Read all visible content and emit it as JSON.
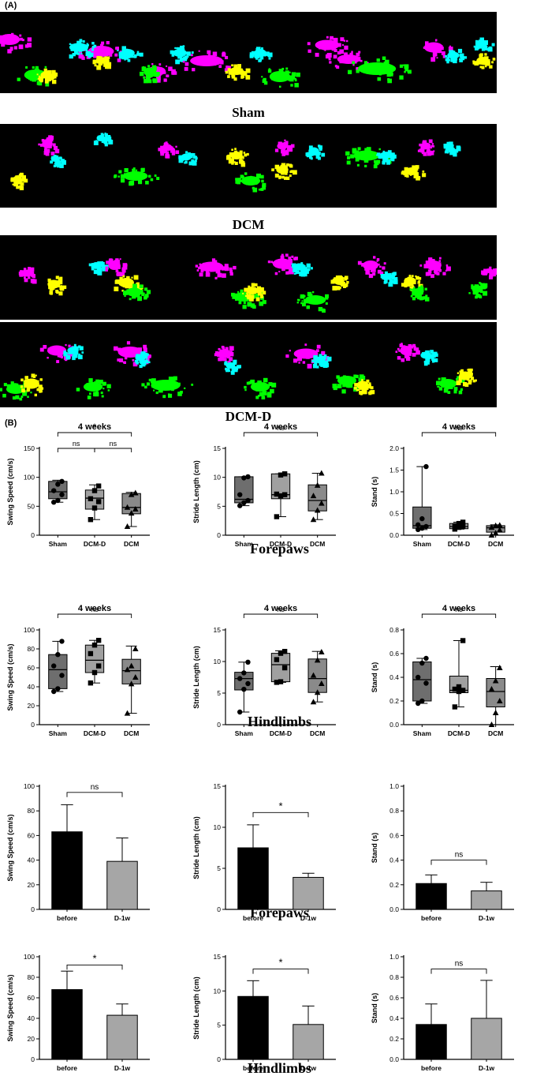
{
  "panel_a_label": "(A)",
  "panel_b_label": "(B)",
  "footprint_captions": [
    "Sham",
    "DCM",
    "DCM-D"
  ],
  "row_captions": [
    "Forepaws",
    "Hindlimbs",
    "Forepaws",
    "Hindlimbs"
  ],
  "colors": {
    "lf": "#ff00ff",
    "rf": "#00ffff",
    "lh": "#ffff00",
    "rh": "#00ff00",
    "box_sham": "#6e6e6e",
    "box_dcmd": "#a0a0a0",
    "box_dcm": "#8a8a8a",
    "bar_before": "#000000",
    "bar_after": "#a6a6a6"
  },
  "chart_data": [
    {
      "type": "box",
      "row": 0,
      "title": "4 weeks",
      "ylabel": "Swing Speed (cm/s)",
      "ylim": [
        0,
        150
      ],
      "yticks": [
        0,
        50,
        100,
        150
      ],
      "categories": [
        "Sham",
        "DCM-D",
        "DCM"
      ],
      "marker": [
        "circle",
        "square",
        "triangle"
      ],
      "boxes": [
        {
          "min": 57,
          "q1": 63,
          "median": 75,
          "q3": 93,
          "max": 95
        },
        {
          "min": 27,
          "q1": 45,
          "median": 64,
          "q3": 78,
          "max": 87
        },
        {
          "min": 15,
          "q1": 37,
          "median": 48,
          "q3": 72,
          "max": 74
        }
      ],
      "points": [
        [
          57,
          60,
          70,
          77,
          88,
          93
        ],
        [
          27,
          47,
          58,
          63,
          77,
          85
        ],
        [
          15,
          38,
          45,
          48,
          70,
          73
        ]
      ],
      "sig": [
        {
          "from": 0,
          "to": 2,
          "label": "*",
          "level": 1
        },
        {
          "from": 0,
          "to": 1,
          "label": "ns",
          "level": 0
        },
        {
          "from": 1,
          "to": 2,
          "label": "ns",
          "level": 0
        }
      ]
    },
    {
      "type": "box",
      "row": 0,
      "title": "4 weeks",
      "ylabel": "Stride Length (cm)",
      "ylim": [
        0,
        15
      ],
      "yticks": [
        0,
        5,
        10,
        15
      ],
      "categories": [
        "Sham",
        "DCM-D",
        "DCM"
      ],
      "marker": [
        "circle",
        "square",
        "triangle"
      ],
      "boxes": [
        {
          "min": 5.1,
          "q1": 5.6,
          "median": 6.2,
          "q3": 10.1,
          "max": 10.1
        },
        {
          "min": 3.2,
          "q1": 6.3,
          "median": 7.0,
          "q3": 10.6,
          "max": 10.6
        },
        {
          "min": 2.7,
          "q1": 4.2,
          "median": 6.0,
          "q3": 8.7,
          "max": 10.7
        }
      ],
      "points": [
        [
          5.1,
          5.6,
          6.0,
          7.0,
          9.9,
          10.1
        ],
        [
          3.2,
          6.8,
          7.0,
          7.1,
          10.4,
          10.6
        ],
        [
          2.7,
          4.3,
          5.5,
          6.8,
          8.6,
          10.7
        ]
      ],
      "sig": [
        {
          "from": 0,
          "to": 2,
          "label": "ns",
          "level": 1
        }
      ]
    },
    {
      "type": "box",
      "row": 0,
      "title": "4 weeks",
      "ylabel": "Stand (s)",
      "ylim": [
        0,
        2.0
      ],
      "yticks": [
        0.0,
        0.5,
        1.0,
        1.5,
        2.0
      ],
      "categories": [
        "Sham",
        "DCM-D",
        "DCM"
      ],
      "marker": [
        "circle",
        "square",
        "triangle"
      ],
      "boxes": [
        {
          "min": 0.13,
          "q1": 0.16,
          "median": 0.22,
          "q3": 0.65,
          "max": 1.58
        },
        {
          "min": 0.14,
          "q1": 0.15,
          "median": 0.2,
          "q3": 0.27,
          "max": 0.3
        },
        {
          "min": 0.0,
          "q1": 0.07,
          "median": 0.17,
          "q3": 0.22,
          "max": 0.24
        }
      ],
      "points": [
        [
          0.13,
          0.16,
          0.2,
          0.24,
          0.38,
          1.58
        ],
        [
          0.14,
          0.18,
          0.2,
          0.22,
          0.27,
          0.3
        ],
        [
          0.0,
          0.05,
          0.12,
          0.18,
          0.22,
          0.23
        ]
      ],
      "sig": [
        {
          "from": 0,
          "to": 2,
          "label": "ns",
          "level": 1
        }
      ]
    },
    {
      "type": "box",
      "row": 1,
      "title": "4 weeks",
      "ylabel": "Swing Speed (cm/s)",
      "ylim": [
        0,
        100
      ],
      "yticks": [
        0,
        20,
        40,
        60,
        80,
        100
      ],
      "categories": [
        "Sham",
        "DCM-D",
        "DCM"
      ],
      "marker": [
        "circle",
        "square",
        "triangle"
      ],
      "boxes": [
        {
          "min": 35,
          "q1": 38,
          "median": 58,
          "q3": 74,
          "max": 88
        },
        {
          "min": 44,
          "q1": 55,
          "median": 68,
          "q3": 84,
          "max": 89
        },
        {
          "min": 12,
          "q1": 43,
          "median": 57,
          "q3": 69,
          "max": 83
        }
      ],
      "points": [
        [
          35,
          38,
          52,
          62,
          74,
          88
        ],
        [
          44,
          55,
          62,
          75,
          84,
          89
        ],
        [
          12,
          43,
          50,
          58,
          62,
          80
        ]
      ],
      "sig": [
        {
          "from": 0,
          "to": 2,
          "label": "ns",
          "level": 1
        }
      ]
    },
    {
      "type": "box",
      "row": 1,
      "title": "4 weeks",
      "ylabel": "Stride Length (cm)",
      "ylim": [
        0,
        15
      ],
      "yticks": [
        0,
        5,
        10,
        15
      ],
      "categories": [
        "Sham",
        "DCM-D",
        "DCM"
      ],
      "marker": [
        "circle",
        "square",
        "triangle"
      ],
      "boxes": [
        {
          "min": 2.0,
          "q1": 5.5,
          "median": 7.3,
          "q3": 8.3,
          "max": 9.9
        },
        {
          "min": 6.7,
          "q1": 6.8,
          "median": 9.5,
          "q3": 11.3,
          "max": 11.7
        },
        {
          "min": 3.6,
          "q1": 5.1,
          "median": 7.3,
          "q3": 10.4,
          "max": 11.6
        }
      ],
      "points": [
        [
          2.0,
          5.6,
          6.5,
          7.3,
          8.2,
          9.9
        ],
        [
          6.7,
          6.8,
          9.0,
          10.3,
          11.3,
          11.6
        ],
        [
          3.6,
          5.1,
          6.5,
          7.8,
          10.2,
          11.5
        ]
      ],
      "sig": [
        {
          "from": 0,
          "to": 2,
          "label": "ns",
          "level": 1
        }
      ]
    },
    {
      "type": "box",
      "row": 1,
      "title": "4 weeks",
      "ylabel": "Stand (s)",
      "ylim": [
        0,
        0.8
      ],
      "yticks": [
        0.0,
        0.2,
        0.4,
        0.6,
        0.8
      ],
      "categories": [
        "Sham",
        "DCM-D",
        "DCM"
      ],
      "marker": [
        "circle",
        "square",
        "triangle"
      ],
      "boxes": [
        {
          "min": 0.18,
          "q1": 0.2,
          "median": 0.38,
          "q3": 0.53,
          "max": 0.56
        },
        {
          "min": 0.15,
          "q1": 0.27,
          "median": 0.29,
          "q3": 0.41,
          "max": 0.71
        },
        {
          "min": 0.0,
          "q1": 0.15,
          "median": 0.28,
          "q3": 0.39,
          "max": 0.49
        }
      ],
      "points": [
        [
          0.18,
          0.2,
          0.35,
          0.4,
          0.52,
          0.56
        ],
        [
          0.15,
          0.28,
          0.29,
          0.3,
          0.32,
          0.71
        ],
        [
          0.0,
          0.1,
          0.2,
          0.3,
          0.37,
          0.48
        ]
      ],
      "sig": [
        {
          "from": 0,
          "to": 2,
          "label": "ns",
          "level": 1
        }
      ]
    },
    {
      "type": "bar",
      "row": 2,
      "ylabel": "Swing Speed (cm/s)",
      "ylim": [
        0,
        100
      ],
      "yticks": [
        0,
        20,
        40,
        60,
        80,
        100
      ],
      "categories": [
        "before",
        "D-1w"
      ],
      "values": [
        63,
        39
      ],
      "errors": [
        22,
        19
      ],
      "sig": {
        "label": "ns",
        "y": 95
      }
    },
    {
      "type": "bar",
      "row": 2,
      "ylabel": "Stride Length (cm)",
      "ylim": [
        0,
        15
      ],
      "yticks": [
        0,
        5,
        10,
        15
      ],
      "categories": [
        "before",
        "D-1w"
      ],
      "values": [
        7.5,
        3.9
      ],
      "errors": [
        2.8,
        0.5
      ],
      "sig": {
        "label": "*",
        "y": 11.8
      }
    },
    {
      "type": "bar",
      "row": 2,
      "ylabel": "Stand (s)",
      "ylim": [
        0,
        1.0
      ],
      "yticks": [
        0.0,
        0.2,
        0.4,
        0.6,
        0.8,
        1.0
      ],
      "categories": [
        "before",
        "D-1w"
      ],
      "values": [
        0.21,
        0.15
      ],
      "errors": [
        0.07,
        0.07
      ],
      "sig": {
        "label": "ns",
        "y": 0.4
      }
    },
    {
      "type": "bar",
      "row": 3,
      "ylabel": "Swing Speed (cm/s)",
      "ylim": [
        0,
        100
      ],
      "yticks": [
        0,
        20,
        40,
        60,
        80,
        100
      ],
      "categories": [
        "before",
        "D-1w"
      ],
      "values": [
        68,
        43
      ],
      "errors": [
        18,
        11
      ],
      "sig": {
        "label": "*",
        "y": 92
      }
    },
    {
      "type": "bar",
      "row": 3,
      "ylabel": "Stride Length (cm)",
      "ylim": [
        0,
        15
      ],
      "yticks": [
        0,
        5,
        10,
        15
      ],
      "categories": [
        "before",
        "D-1w"
      ],
      "values": [
        9.2,
        5.1
      ],
      "errors": [
        2.3,
        2.7
      ],
      "sig": {
        "label": "*",
        "y": 13.2
      }
    },
    {
      "type": "bar",
      "row": 3,
      "ylabel": "Stand (s)",
      "ylim": [
        0,
        1.0
      ],
      "yticks": [
        0.0,
        0.2,
        0.4,
        0.6,
        0.8,
        1.0
      ],
      "categories": [
        "before",
        "D-1w"
      ],
      "values": [
        0.34,
        0.4
      ],
      "errors": [
        0.2,
        0.37
      ],
      "sig": {
        "label": "ns",
        "y": 0.88
      }
    }
  ]
}
